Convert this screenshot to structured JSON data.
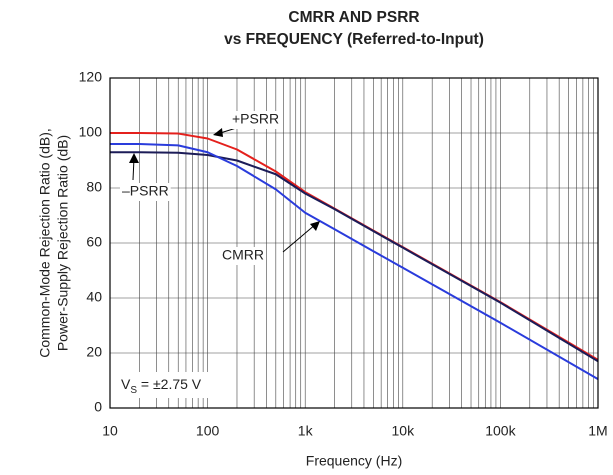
{
  "chart_data": {
    "type": "line",
    "title": [
      "CMRR AND PSRR",
      "vs FREQUENCY (Referred-to-Input)"
    ],
    "x_label": "Frequency (Hz)",
    "y_label": [
      "Common-Mode Rejection Ratio (dB),",
      "Power-Supply Rejection Ratio (dB)"
    ],
    "xscale": "log",
    "xlim": [
      10,
      1000000
    ],
    "xticks": [
      10,
      100,
      {
        "value": 1000,
        "label": "1k"
      },
      {
        "value": 10000,
        "label": "10k"
      },
      {
        "value": 100000,
        "label": "100k"
      },
      {
        "value": 1000000,
        "label": "1M"
      }
    ],
    "xminorticks": [
      20,
      30,
      40,
      50,
      60,
      70,
      80,
      90,
      200,
      300,
      400,
      500,
      600,
      700,
      800,
      900,
      2000,
      3000,
      4000,
      5000,
      6000,
      7000,
      8000,
      9000,
      20000,
      30000,
      40000,
      50000,
      60000,
      70000,
      80000,
      90000,
      200000,
      300000,
      400000,
      500000,
      600000,
      700000,
      800000,
      900000
    ],
    "ylim": [
      0,
      120
    ],
    "yticks": [
      0,
      20,
      40,
      60,
      80,
      100,
      120
    ],
    "grid": true,
    "x": [
      10,
      20,
      50,
      100,
      200,
      500,
      1000,
      2000,
      5000,
      10000,
      100000,
      1000000
    ],
    "series": [
      {
        "name": "+PSRR",
        "color": "#e4201c",
        "values": [
          100,
          100,
          99.8,
          98,
          94,
          86,
          78.5,
          72.5,
          64.5,
          58.5,
          38.5,
          17.5
        ]
      },
      {
        "name": "–PSRR",
        "color": "#1c1c58",
        "values": [
          93,
          93,
          92.8,
          92,
          90,
          85,
          78,
          72.3,
          64.3,
          58.3,
          38.3,
          17
        ]
      },
      {
        "name": "CMRR",
        "color": "#2a3cdc",
        "values": [
          96,
          96,
          95.5,
          93,
          88,
          79.5,
          71,
          65,
          57,
          51,
          31,
          10.5
        ]
      }
    ],
    "annotation": {
      "text": "V",
      "sub": "S",
      "rest": " = ±2.75 V"
    }
  }
}
